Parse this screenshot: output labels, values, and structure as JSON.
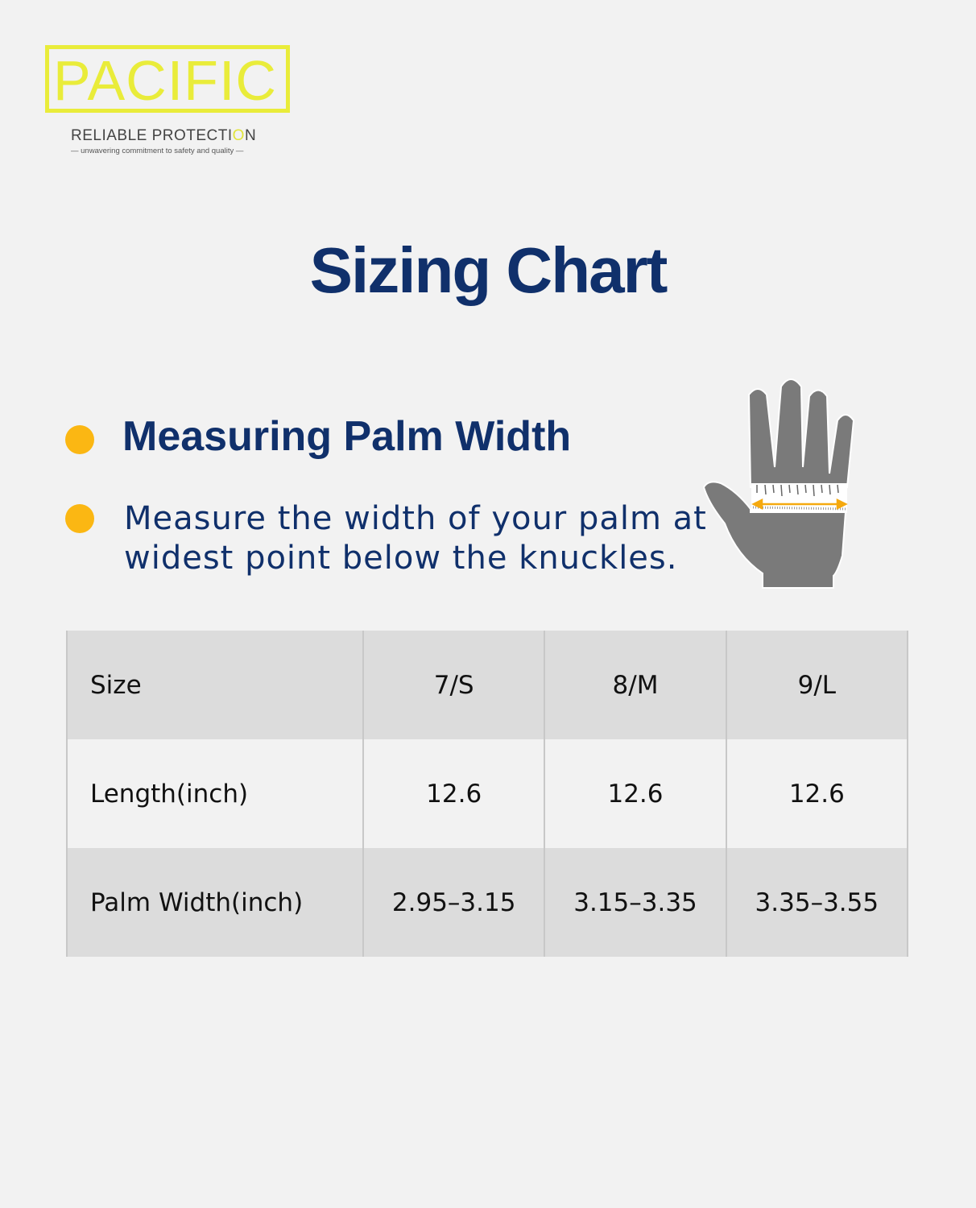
{
  "brand": {
    "logo_text": "PACIFIC",
    "tagline_a": "RELIABLE  PROTECTI",
    "tagline_o": "O",
    "tagline_b": "N",
    "subtagline": "— unwavering commitment to safety and quality —",
    "color": "#e9ec3a"
  },
  "title": "Sizing Chart",
  "section": {
    "heading": "Measuring Palm Width",
    "instruction_line1": "Measure the width of your palm at",
    "instruction_line2": "widest point below the knuckles.",
    "bullet_color": "#fbb713",
    "icon": "hand-measure-icon"
  },
  "table": {
    "headers": [
      "Size",
      "7/S",
      "8/M",
      "9/L"
    ],
    "rows": [
      [
        "Length(inch)",
        "12.6",
        "12.6",
        "12.6"
      ],
      [
        "Palm Width(inch)",
        "2.95–3.15",
        "3.15–3.35",
        "3.35–3.55"
      ]
    ]
  }
}
